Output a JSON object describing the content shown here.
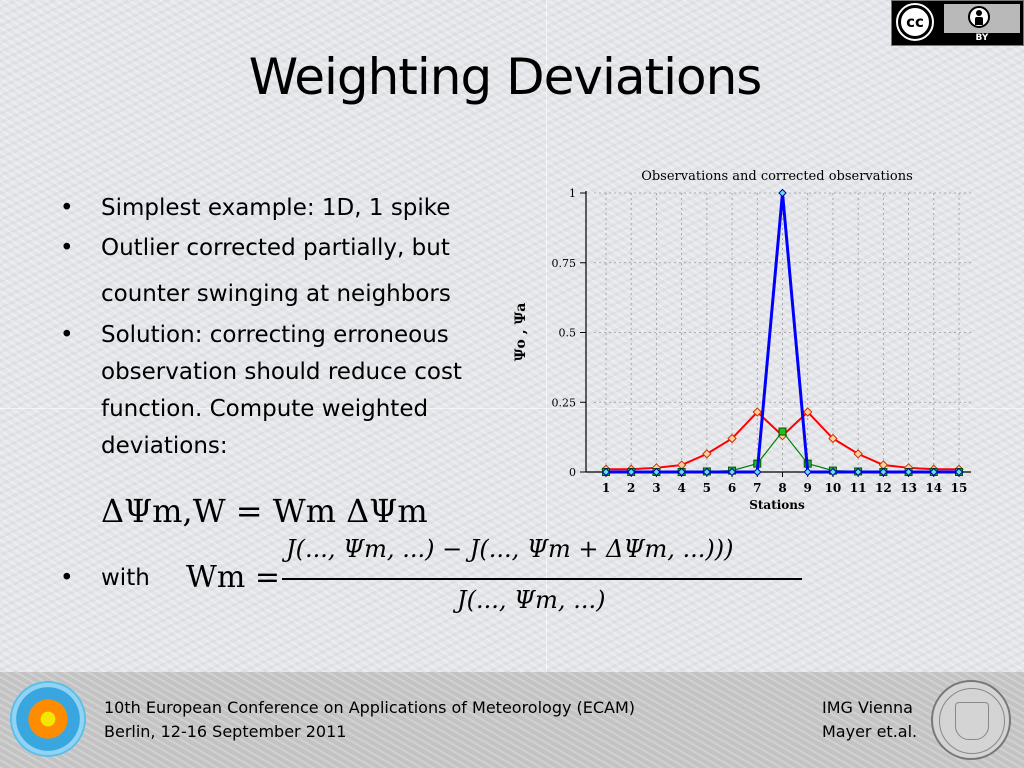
{
  "title": "Weighting Deviations",
  "license_badge": {
    "left": "cc",
    "right": "BY"
  },
  "bullets": [
    "Simplest example: 1D, 1 spike",
    "Outlier corrected partially, but counter swinging at neighbors",
    "Solution: correcting erroneous observation should reduce cost function. Compute weighted deviations:"
  ],
  "equation1": "ΔΨm,W = Wm ΔΨm",
  "with_label": "with",
  "equation2": {
    "lhs": "Wm =",
    "numerator": "J(..., Ψm, ...) − J(..., Ψm + ΔΨm, ...)))",
    "denominator": "J(..., Ψm, ...)"
  },
  "footer": {
    "line1": "10th European Conference on Applications of Meteorology (ECAM)",
    "line2": "Berlin, 12-16 September 2011",
    "right1": "IMG Vienna",
    "right2": "Mayer et.al."
  },
  "chart_data": {
    "type": "line",
    "title": "Observations and corrected observations",
    "xlabel": "Stations",
    "ylabel": "Ψo , Ψa",
    "x": [
      1,
      2,
      3,
      4,
      5,
      6,
      7,
      8,
      9,
      10,
      11,
      12,
      13,
      14,
      15
    ],
    "ylim": [
      0,
      1
    ],
    "yticks": [
      "0",
      "0.25",
      "0.5",
      "0.75",
      "1"
    ],
    "grid": true,
    "series": [
      {
        "color": "#ff0000",
        "marker": "diamond",
        "values": [
          0.01,
          0.01,
          0.015,
          0.025,
          0.065,
          0.12,
          0.215,
          0.13,
          0.215,
          0.12,
          0.065,
          0.025,
          0.015,
          0.01,
          0.01
        ]
      },
      {
        "color": "#008000",
        "marker": "square",
        "values": [
          0,
          0,
          0,
          0,
          0.002,
          0.005,
          0.03,
          0.145,
          0.03,
          0.005,
          0.002,
          0,
          0,
          0,
          0
        ]
      },
      {
        "color": "#0000ff",
        "marker": "diamond",
        "values": [
          0,
          0,
          0,
          0,
          0,
          0,
          0,
          1,
          0,
          0,
          0,
          0,
          0,
          0,
          0
        ]
      }
    ]
  }
}
